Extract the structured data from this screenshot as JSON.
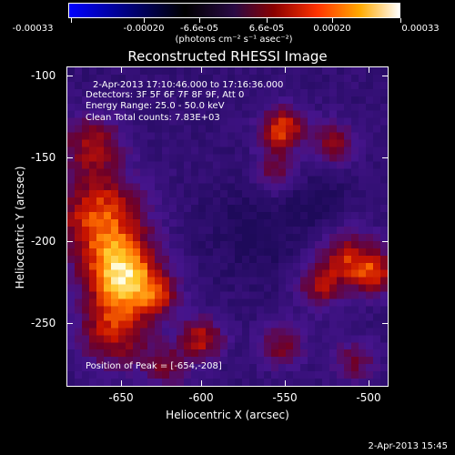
{
  "colorbar": {
    "tick_labels": [
      "-0.00033",
      "-0.00020",
      "-6.6e-05",
      "6.6e-05",
      "0.00020",
      "0.00033"
    ],
    "units": "(photons cm⁻² s⁻¹ asec⁻²)",
    "colors": [
      "#0000ff",
      "#000000",
      "#4b0082",
      "#ff0000",
      "#ffa500",
      "#ffffff"
    ]
  },
  "plot": {
    "title": "Reconstructed RHESSI Image",
    "annotations": {
      "time_range": "2-Apr-2013 17:10:46.000 to 17:16:36.000",
      "detectors": "Detectors: 3F 5F 6F 7F 8F 9F, Att 0",
      "energy": "Energy Range: 25.0 - 50.0 keV",
      "clean": "Clean     Total counts: 7.83E+03",
      "peak": "Position of Peak = [-654,-208]"
    },
    "x_axis": {
      "title": "Heliocentric X (arcsec)",
      "tick_labels": [
        "-650",
        "-600",
        "-550",
        "-500"
      ],
      "range": [
        -677,
        -489
      ]
    },
    "y_axis": {
      "title": "Heliocentric Y (arcsec)",
      "tick_labels": [
        "-100",
        "-150",
        "-200",
        "-250"
      ],
      "range": [
        -289,
        -97
      ]
    }
  },
  "footer": {
    "timestamp": "2-Apr-2013 15:45"
  }
}
